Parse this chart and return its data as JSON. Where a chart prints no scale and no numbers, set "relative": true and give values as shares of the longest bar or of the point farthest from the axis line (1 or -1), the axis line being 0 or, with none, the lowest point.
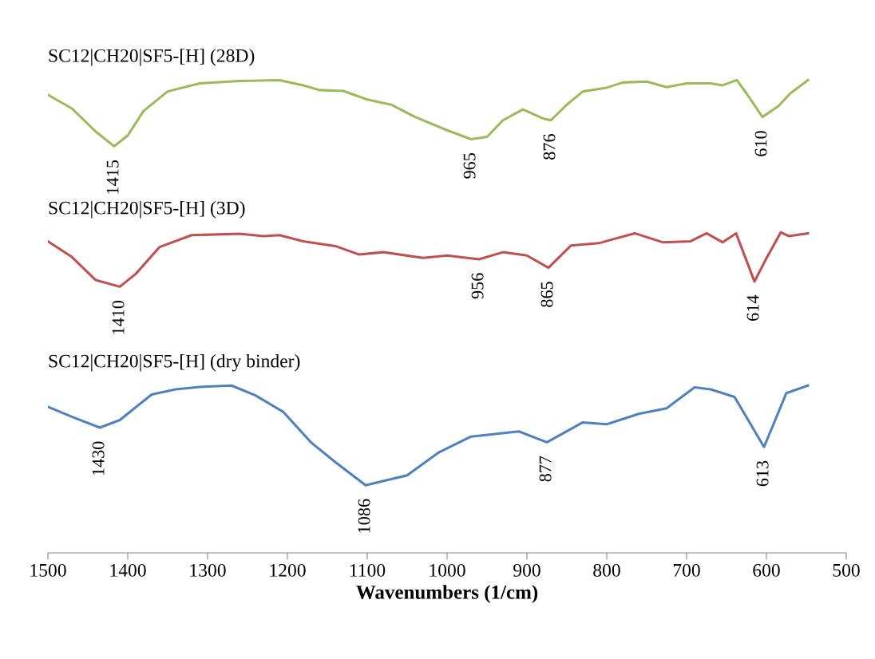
{
  "chart_data": {
    "type": "line",
    "relative": true,
    "xlabel": "Wavenumbers (1/cm)",
    "xlim": [
      1500,
      500
    ],
    "xticks": [
      1500,
      1400,
      1300,
      1200,
      1100,
      1000,
      900,
      800,
      700,
      600,
      500
    ],
    "grid": false,
    "legend": false,
    "marker": "none",
    "line_style": "solid",
    "series": [
      {
        "name": "SC12|CH20|SF5-[H] (28D)",
        "color": "#9bbb59",
        "x": [
          1500,
          1470,
          1440,
          1417,
          1400,
          1380,
          1350,
          1310,
          1260,
          1210,
          1180,
          1160,
          1130,
          1100,
          1070,
          1040,
          1000,
          970,
          950,
          930,
          905,
          880,
          870,
          850,
          830,
          800,
          780,
          750,
          725,
          700,
          670,
          655,
          637,
          625,
          605,
          585,
          570,
          548
        ],
        "values": [
          0.969,
          0.94,
          0.891,
          0.86,
          0.883,
          0.935,
          0.976,
          0.993,
          0.998,
          1.0,
          0.989,
          0.979,
          0.977,
          0.959,
          0.948,
          0.922,
          0.894,
          0.875,
          0.88,
          0.915,
          0.938,
          0.919,
          0.915,
          0.948,
          0.976,
          0.984,
          0.995,
          0.997,
          0.985,
          0.993,
          0.993,
          0.989,
          1.0,
          0.972,
          0.922,
          0.945,
          0.972,
          1.0
        ]
      },
      {
        "name": "SC12|CH20|SF5-[H] (3D)",
        "color": "#c0504d",
        "x": [
          1500,
          1470,
          1440,
          1410,
          1390,
          1360,
          1320,
          1260,
          1230,
          1210,
          1180,
          1140,
          1110,
          1080,
          1030,
          1000,
          960,
          930,
          900,
          873,
          845,
          810,
          765,
          730,
          695,
          675,
          655,
          638,
          615,
          600,
          582,
          572,
          548
        ],
        "values": [
          0.659,
          0.626,
          0.577,
          0.563,
          0.59,
          0.647,
          0.672,
          0.675,
          0.67,
          0.672,
          0.659,
          0.649,
          0.631,
          0.636,
          0.624,
          0.629,
          0.621,
          0.636,
          0.629,
          0.603,
          0.65,
          0.655,
          0.676,
          0.657,
          0.659,
          0.676,
          0.657,
          0.676,
          0.574,
          0.623,
          0.678,
          0.67,
          0.676
        ]
      },
      {
        "name": "SC12|CH20|SF5-[H] (dry binder)",
        "color": "#4f81bd",
        "x": [
          1500,
          1470,
          1435,
          1410,
          1370,
          1340,
          1310,
          1270,
          1240,
          1205,
          1170,
          1140,
          1102,
          1070,
          1050,
          1010,
          970,
          910,
          875,
          830,
          800,
          760,
          725,
          690,
          670,
          640,
          603,
          575,
          548
        ],
        "values": [
          0.309,
          0.288,
          0.265,
          0.281,
          0.335,
          0.346,
          0.351,
          0.354,
          0.333,
          0.298,
          0.233,
          0.192,
          0.143,
          0.156,
          0.164,
          0.213,
          0.246,
          0.257,
          0.234,
          0.276,
          0.272,
          0.294,
          0.306,
          0.35,
          0.346,
          0.33,
          0.224,
          0.338,
          0.354
        ]
      }
    ],
    "annotations": [
      {
        "text": "1415",
        "x": 1417,
        "y": 0.86
      },
      {
        "text": "965",
        "x": 970,
        "y": 0.875
      },
      {
        "text": "876",
        "x": 870,
        "y": 0.915
      },
      {
        "text": "610",
        "x": 605,
        "y": 0.922
      },
      {
        "text": "1410",
        "x": 1410,
        "y": 0.563
      },
      {
        "text": "956",
        "x": 960,
        "y": 0.621
      },
      {
        "text": "865",
        "x": 873,
        "y": 0.603
      },
      {
        "text": "614",
        "x": 615,
        "y": 0.574
      },
      {
        "text": "1430",
        "x": 1435,
        "y": 0.265
      },
      {
        "text": "1086",
        "x": 1102,
        "y": 0.143
      },
      {
        "text": "877",
        "x": 875,
        "y": 0.234
      },
      {
        "text": "613",
        "x": 603,
        "y": 0.224
      }
    ]
  }
}
